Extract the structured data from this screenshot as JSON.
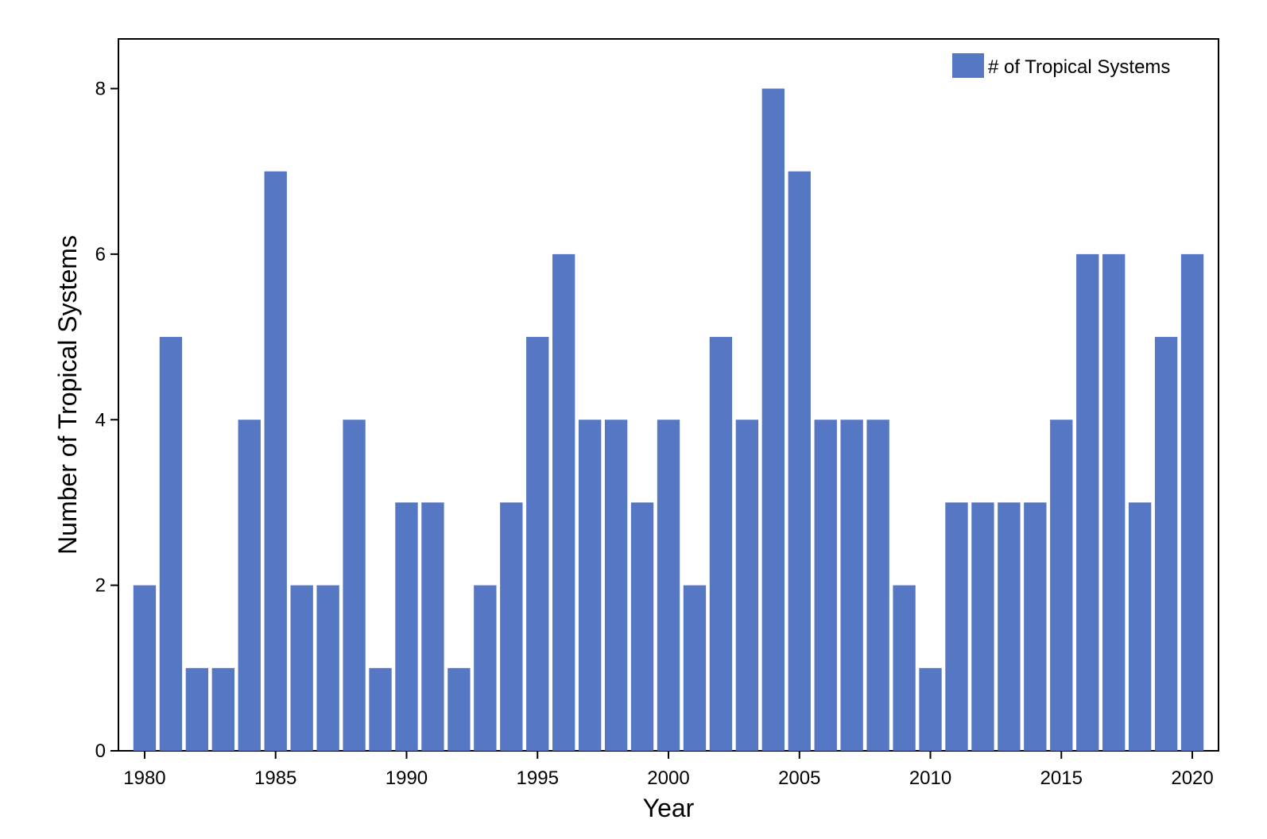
{
  "chart_data": {
    "type": "bar",
    "xlabel": "Year",
    "ylabel": "Number of Tropical Systems",
    "ylim": [
      0,
      8.6
    ],
    "yticks": [
      0,
      2,
      4,
      6,
      8
    ],
    "xticks": [
      1980,
      1985,
      1990,
      1995,
      2000,
      2005,
      2010,
      2015,
      2020
    ],
    "xlim": [
      1979,
      2021
    ],
    "categories": [
      1980,
      1981,
      1982,
      1983,
      1984,
      1985,
      1986,
      1987,
      1988,
      1989,
      1990,
      1991,
      1992,
      1993,
      1994,
      1995,
      1996,
      1997,
      1998,
      1999,
      2000,
      2001,
      2002,
      2003,
      2004,
      2005,
      2006,
      2007,
      2008,
      2009,
      2010,
      2011,
      2012,
      2013,
      2014,
      2015,
      2016,
      2017,
      2018,
      2019,
      2020
    ],
    "series": [
      {
        "name": "# of Tropical Systems",
        "color": "#5577c4",
        "values": [
          2,
          5,
          1,
          1,
          4,
          7,
          2,
          2,
          4,
          1,
          3,
          3,
          1,
          2,
          3,
          5,
          6,
          4,
          4,
          3,
          4,
          2,
          5,
          4,
          8,
          7,
          4,
          4,
          4,
          2,
          1,
          3,
          3,
          3,
          3,
          4,
          6,
          6,
          3,
          5,
          6
        ]
      }
    ],
    "legend": {
      "position": "top-right"
    },
    "grid": false
  }
}
